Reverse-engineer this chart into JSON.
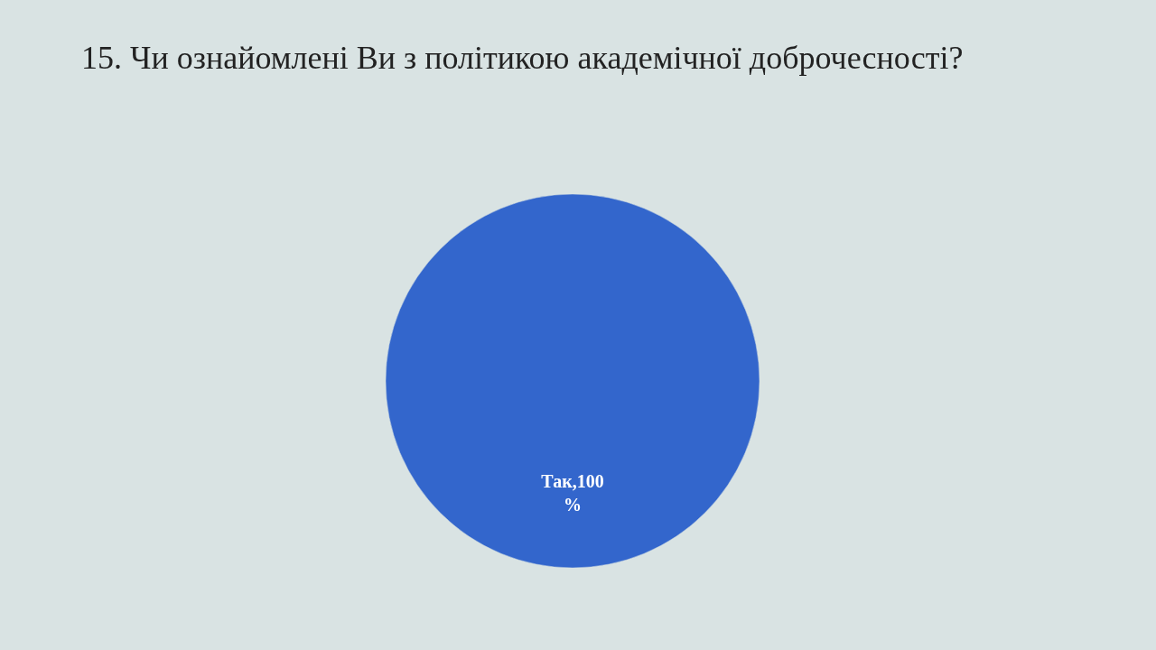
{
  "chart_data": {
    "type": "pie",
    "title": "15. Чи ознайомлені Ви  з політикою академічної доброчесності?",
    "categories": [
      "Так"
    ],
    "values": [
      100
    ],
    "colors": [
      "#3366cc"
    ],
    "value_labels": [
      "100 %"
    ]
  }
}
